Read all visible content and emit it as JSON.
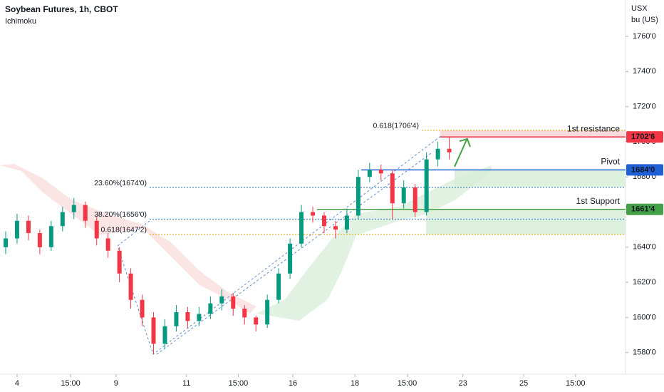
{
  "chart_data": {
    "type": "candlestick",
    "title": "Soybean Futures, 1h, CBOT",
    "subtitle": "Ichimoku",
    "y_unit": [
      "USX",
      "bu (US)"
    ],
    "x": [
      0,
      2,
      4,
      6,
      8,
      10,
      12,
      14,
      16,
      18,
      20,
      22,
      24,
      26,
      28,
      30,
      32,
      34,
      36,
      38,
      40,
      42,
      44,
      46,
      48,
      50,
      52,
      54,
      56,
      58,
      60,
      62,
      64,
      66,
      68,
      70,
      72,
      74,
      76,
      78
    ],
    "open": [
      1640,
      1645,
      1655,
      1648,
      1640,
      1652,
      1660,
      1664,
      1655,
      1645,
      1638,
      1625,
      1610,
      1600,
      1585,
      1595,
      1603,
      1598,
      1602,
      1608,
      1612,
      1605,
      1600,
      1596,
      1610,
      1625,
      1642,
      1660,
      1658,
      1652,
      1650,
      1658,
      1680,
      1684,
      1682,
      1665,
      1674,
      1660,
      1690,
      1696
    ],
    "high": [
      1649,
      1659,
      1658,
      1650,
      1655,
      1663,
      1668,
      1666,
      1657,
      1648,
      1640,
      1628,
      1613,
      1603,
      1599,
      1607,
      1606,
      1606,
      1612,
      1616,
      1614,
      1607,
      1601,
      1613,
      1628,
      1645,
      1664,
      1663,
      1660,
      1655,
      1662,
      1684,
      1688,
      1687,
      1684,
      1678,
      1676,
      1694,
      1700,
      1703
    ],
    "low": [
      1636,
      1642,
      1644,
      1636,
      1638,
      1649,
      1656,
      1651,
      1641,
      1634,
      1620,
      1605,
      1595,
      1579,
      1582,
      1592,
      1594,
      1595,
      1599,
      1604,
      1601,
      1596,
      1592,
      1594,
      1608,
      1622,
      1640,
      1654,
      1648,
      1645,
      1648,
      1656,
      1677,
      1678,
      1656,
      1662,
      1657,
      1658,
      1686,
      1690
    ],
    "close": [
      1645,
      1655,
      1648,
      1640,
      1652,
      1660,
      1664,
      1655,
      1645,
      1638,
      1625,
      1610,
      1600,
      1585,
      1595,
      1603,
      1598,
      1602,
      1608,
      1612,
      1605,
      1600,
      1596,
      1610,
      1625,
      1642,
      1660,
      1658,
      1652,
      1650,
      1658,
      1680,
      1684,
      1682,
      1665,
      1674,
      1660,
      1690,
      1696,
      1694
    ],
    "up_color": "#089981",
    "down_color": "#f23645",
    "xlim": [
      0,
      110
    ],
    "xticks": [
      {
        "value": 3,
        "label": "4"
      },
      {
        "value": 12.4,
        "label": "15:00"
      },
      {
        "value": 20.4,
        "label": "9"
      },
      {
        "value": 32.8,
        "label": "11"
      },
      {
        "value": 41.9,
        "label": "15:00"
      },
      {
        "value": 51.5,
        "label": "16"
      },
      {
        "value": 62.4,
        "label": "18"
      },
      {
        "value": 71.6,
        "label": "15:00"
      },
      {
        "value": 81.4,
        "label": "23"
      },
      {
        "value": 92.1,
        "label": "25"
      },
      {
        "value": 101.2,
        "label": "15:00"
      }
    ],
    "ylim": [
      1567.7,
      1780.7
    ],
    "yticks": [
      {
        "value": 1580,
        "label": "1580'0"
      },
      {
        "value": 1600,
        "label": "1600'0"
      },
      {
        "value": 1620,
        "label": "1620'0"
      },
      {
        "value": 1640,
        "label": "1640'0"
      },
      {
        "value": 1660,
        "label": "1660'0"
      },
      {
        "value": 1680,
        "label": "1680'0"
      },
      {
        "value": 1700,
        "label": "1700'0"
      },
      {
        "value": 1720,
        "label": "1720'0"
      },
      {
        "value": 1740,
        "label": "1740'0"
      },
      {
        "value": 1760,
        "label": "1760'0"
      }
    ],
    "levels": [
      {
        "name": "1st resistance",
        "value": 1702.75,
        "value_label": "1702'6",
        "color": "#f23645"
      },
      {
        "name": "Pivot",
        "value": 1684,
        "value_label": "1684'0",
        "color": "#1e5fd6"
      },
      {
        "name": "1st Support",
        "value": 1661.5,
        "value_label": "1661'4",
        "color": "#43a047"
      }
    ],
    "fibs": [
      {
        "label": "0.618(1706'4)",
        "value": 1706.5,
        "color": "#e0a800"
      },
      {
        "label": "23.60%(1674'0)",
        "value": 1674,
        "color": "#1e6fb8"
      },
      {
        "label": "38.20%(1656'0)",
        "value": 1656,
        "color": "#1e6fb8"
      },
      {
        "label": "0.618(1647'2)",
        "value": 1647.25,
        "color": "#e0a800"
      }
    ]
  }
}
